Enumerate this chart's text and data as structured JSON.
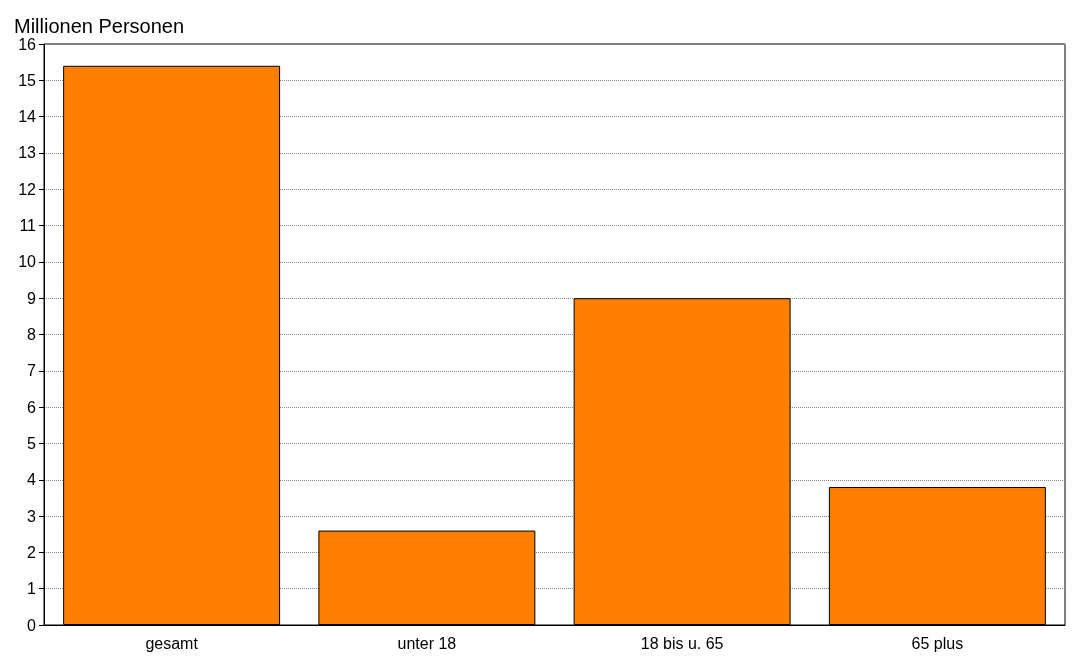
{
  "chart_data": {
    "type": "bar",
    "ylabel": "Millionen Personen",
    "categories": [
      "gesamt",
      "unter 18",
      "18 bis u. 65",
      "65 plus"
    ],
    "values": [
      15.4,
      2.6,
      9.0,
      3.8
    ],
    "color": "#ff8000",
    "ylim": [
      0,
      16
    ],
    "yticks": [
      0,
      1,
      2,
      3,
      4,
      5,
      6,
      7,
      8,
      9,
      10,
      11,
      12,
      13,
      14,
      15,
      16
    ],
    "grid": "y"
  }
}
